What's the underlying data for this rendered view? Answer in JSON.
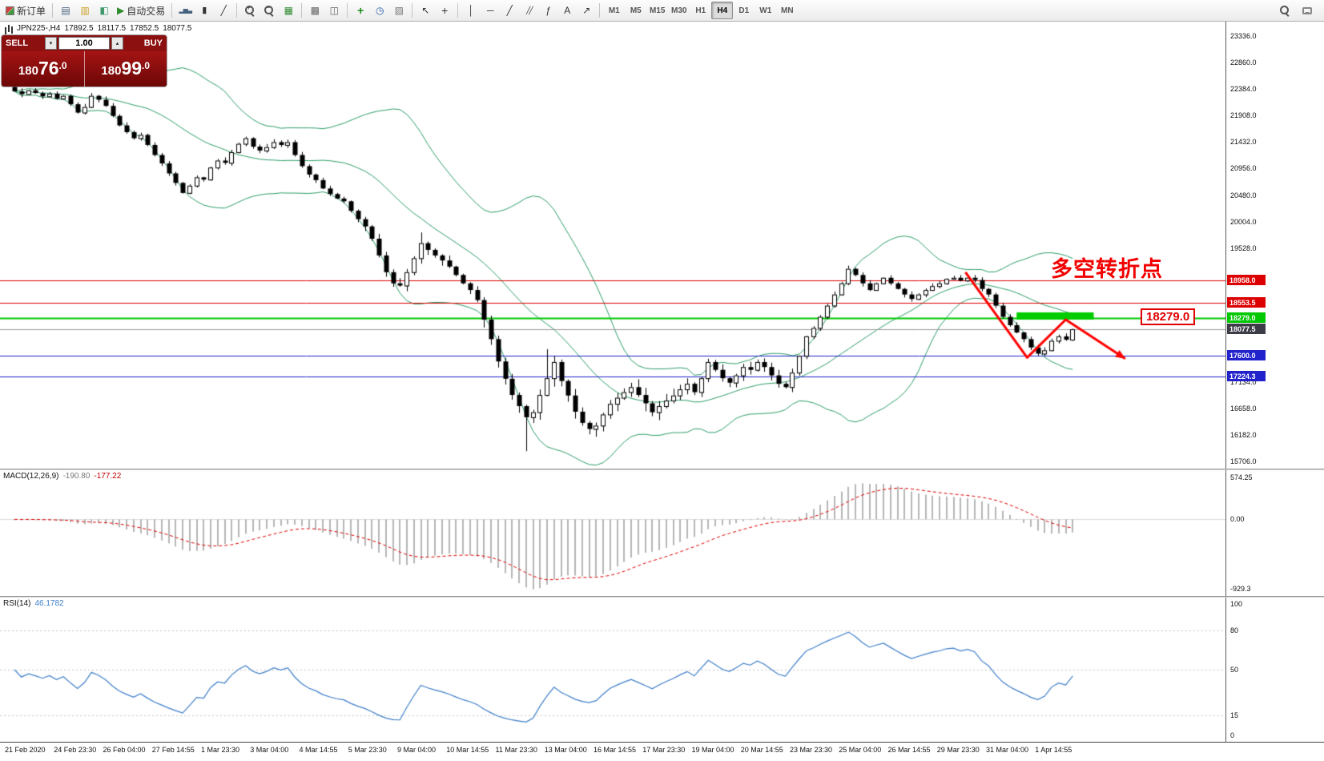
{
  "toolbar": {
    "new_order_label": "新订单",
    "auto_trading_label": "自动交易",
    "timeframes": [
      "M1",
      "M5",
      "M15",
      "M30",
      "H1",
      "H4",
      "D1",
      "W1",
      "MN"
    ],
    "active_timeframe": "H4"
  },
  "chart_header": {
    "symbol": "JPN225-,H4",
    "open": "17892.5",
    "high": "18117.5",
    "low": "17852.5",
    "close": "18077.5"
  },
  "trade_panel": {
    "sell_label": "SELL",
    "buy_label": "BUY",
    "volume": "1.00",
    "sell_price": {
      "prefix": "180",
      "big": "76",
      "dec": ".0"
    },
    "buy_price": {
      "prefix": "180",
      "big": "99",
      "dec": ".0"
    }
  },
  "annotations": {
    "turning_point_text": "多空转折点",
    "price_callout": "18279.0"
  },
  "macd_panel": {
    "label": "MACD(12,26,9)",
    "value1": "-190.80",
    "value2": "-177.22",
    "scale_top": "574.25",
    "scale_zero": "0.00",
    "scale_bottom": "-929.3"
  },
  "rsi_panel": {
    "label": "RSI(14)",
    "value": "46.1782",
    "levels": [
      100,
      80,
      50,
      15,
      0
    ]
  },
  "price_axis": {
    "regular_labels": [
      23336.0,
      22860.0,
      22384.0,
      21908.0,
      21432.0,
      20956.0,
      20480.0,
      20004.0,
      19528.0,
      17134.0,
      16658.0,
      16182.0,
      15706.0
    ],
    "tagged_levels": [
      {
        "price": 18958.0,
        "label": "18958.0",
        "color": "#dd0000",
        "line": "solid"
      },
      {
        "price": 18553.5,
        "label": "18553.5",
        "color": "#dd0000",
        "line": "solid"
      },
      {
        "price": 18279.0,
        "label": "18279.0",
        "color": "#00c800",
        "line": "solid"
      },
      {
        "price": 18077.5,
        "label": "18077.5",
        "color": "#3c3c46",
        "line": "current"
      },
      {
        "price": 17600.0,
        "label": "17600.0",
        "color": "#2222cc",
        "line": "solid"
      },
      {
        "price": 17224.3,
        "label": "17224.3",
        "color": "#2222cc",
        "line": "solid"
      }
    ]
  },
  "time_axis": [
    "21 Feb 2020",
    "24 Feb 23:30",
    "26 Feb 04:00",
    "27 Feb 14:55",
    "1 Mar 23:30",
    "3 Mar 04:00",
    "4 Mar 14:55",
    "5 Mar 23:30",
    "9 Mar 04:00",
    "10 Mar 14:55",
    "11 Mar 23:30",
    "13 Mar 04:00",
    "16 Mar 14:55",
    "17 Mar 23:30",
    "19 Mar 04:00",
    "20 Mar 14:55",
    "23 Mar 23:30",
    "25 Mar 04:00",
    "26 Mar 14:55",
    "29 Mar 23:30",
    "31 Mar 04:00",
    "1 Apr 14:55"
  ],
  "chart_data": {
    "type": "candlestick",
    "symbol": "JPN225-",
    "timeframe": "H4",
    "price_range": [
      15580,
      23590
    ],
    "first_open": 22420,
    "closes": [
      22340,
      22290,
      22360,
      22310,
      22250,
      22300,
      22210,
      22260,
      22110,
      21960,
      22060,
      22260,
      22190,
      22080,
      21900,
      21730,
      21610,
      21500,
      21560,
      21380,
      21200,
      21050,
      20870,
      20700,
      20520,
      20650,
      20800,
      20760,
      20975,
      21100,
      21060,
      21250,
      21400,
      21500,
      21350,
      21280,
      21340,
      21430,
      21380,
      21430,
      21200,
      21000,
      20850,
      20750,
      20600,
      20500,
      20420,
      20370,
      20200,
      20050,
      19920,
      19700,
      19400,
      19100,
      18900,
      18860,
      19100,
      19350,
      19620,
      19500,
      19400,
      19310,
      19200,
      19050,
      18900,
      18780,
      18600,
      18250,
      17900,
      17500,
      17190,
      16900,
      16700,
      16500,
      16590,
      16900,
      17200,
      17490,
      17150,
      16890,
      16600,
      16400,
      16290,
      16350,
      16550,
      16740,
      16850,
      16950,
      17040,
      16900,
      16750,
      16590,
      16700,
      16800,
      16890,
      17000,
      17100,
      16950,
      17200,
      17490,
      17350,
      17200,
      17120,
      17250,
      17400,
      17350,
      17490,
      17400,
      17250,
      17100,
      17040,
      17300,
      17600,
      17950,
      18100,
      18300,
      18500,
      18700,
      18900,
      19160,
      19050,
      18900,
      18780,
      18900,
      19000,
      18900,
      18800,
      18700,
      18620,
      18700,
      18780,
      18850,
      18900,
      18980,
      19000,
      18950,
      19000,
      18960,
      18800,
      18700,
      18500,
      18300,
      18150,
      18020,
      17900,
      17750,
      17640,
      17700,
      17870,
      17950,
      17890,
      18077.5
    ],
    "bollinger": {
      "period": 20,
      "deviation": 2
    },
    "macd": {
      "fast": 12,
      "slow": 26,
      "signal": 9,
      "current": -190.8,
      "current_signal": -177.22,
      "range": [
        -929.3,
        574.25
      ]
    },
    "rsi": {
      "period": 14,
      "current": 46.1782
    },
    "levels": {
      "resistance": [
        18958.0,
        18553.5
      ],
      "pivot": 18279.0,
      "current": 18077.5,
      "support": [
        17600.0,
        17224.3
      ]
    },
    "drawing": {
      "arrow_path": [
        [
          135.7,
          19100
        ],
        [
          144.5,
          17570
        ],
        [
          150,
          18250
        ],
        [
          158.5,
          17550
        ]
      ],
      "zone_rect": {
        "x_bars": [
          143,
          154
        ],
        "price": 18279.0,
        "color": "#00cc00"
      }
    }
  }
}
